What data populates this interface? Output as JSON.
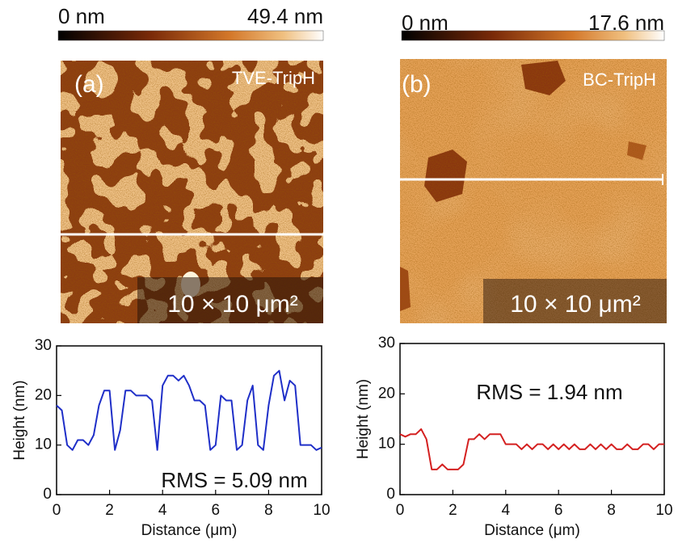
{
  "images": [
    {
      "label": "(a)",
      "sample": "TVE-TripH",
      "scale_min": "0 nm",
      "scale_max": "49.4 nm",
      "size": "10 × 10 μm²"
    },
    {
      "label": "(b)",
      "sample": "BC-TripH",
      "scale_min": "0 nm",
      "scale_max": "17.6 nm",
      "size": "10 × 10 μm²"
    }
  ],
  "chart_data": [
    {
      "type": "line",
      "xlabel": "Distance (μm)",
      "ylabel": "Height (nm)",
      "annotation": "RMS = 5.09 nm",
      "xlim": [
        0,
        10
      ],
      "xticks": [
        0,
        2,
        4,
        6,
        8,
        10
      ],
      "ylim": [
        0,
        30
      ],
      "yticks": [
        0,
        10,
        20,
        30
      ],
      "x": [
        0,
        0.2,
        0.4,
        0.6,
        0.8,
        1.0,
        1.2,
        1.4,
        1.6,
        1.8,
        2.0,
        2.2,
        2.4,
        2.6,
        2.8,
        3.0,
        3.2,
        3.4,
        3.6,
        3.8,
        4.0,
        4.2,
        4.4,
        4.6,
        4.8,
        5.0,
        5.2,
        5.4,
        5.6,
        5.8,
        6.0,
        6.2,
        6.4,
        6.6,
        6.8,
        7.0,
        7.2,
        7.4,
        7.6,
        7.8,
        8.0,
        8.2,
        8.4,
        8.6,
        8.8,
        9.0,
        9.2,
        9.4,
        9.6,
        9.8,
        10
      ],
      "series": [
        {
          "color": "#1f2fc8",
          "values": [
            18,
            17,
            10,
            9,
            11,
            11,
            10,
            12,
            18,
            21,
            21,
            9,
            13,
            21,
            21,
            20,
            20,
            20,
            19,
            9,
            22,
            24,
            24,
            23,
            24,
            22,
            19,
            19,
            18,
            9,
            10,
            20,
            19,
            19,
            9,
            10,
            19,
            22,
            10,
            9,
            18,
            24,
            25,
            19,
            23,
            22,
            10,
            10,
            10,
            9,
            9.5
          ]
        }
      ]
    },
    {
      "type": "line",
      "xlabel": "Distance (μm)",
      "ylabel": "Height (nm)",
      "annotation": "RMS = 1.94 nm",
      "xlim": [
        0,
        10
      ],
      "xticks": [
        0,
        2,
        4,
        6,
        8,
        10
      ],
      "ylim": [
        0,
        30
      ],
      "yticks": [
        0,
        10,
        20,
        30
      ],
      "x": [
        0,
        0.2,
        0.4,
        0.6,
        0.8,
        1.0,
        1.2,
        1.4,
        1.6,
        1.8,
        2.0,
        2.2,
        2.4,
        2.6,
        2.8,
        3.0,
        3.2,
        3.4,
        3.6,
        3.8,
        4.0,
        4.2,
        4.4,
        4.6,
        4.8,
        5.0,
        5.2,
        5.4,
        5.6,
        5.8,
        6.0,
        6.2,
        6.4,
        6.6,
        6.8,
        7.0,
        7.2,
        7.4,
        7.6,
        7.8,
        8.0,
        8.2,
        8.4,
        8.6,
        8.8,
        9.0,
        9.2,
        9.4,
        9.6,
        9.8,
        10
      ],
      "series": [
        {
          "color": "#d42020",
          "values": [
            12,
            11.5,
            12,
            12,
            13,
            11,
            5,
            5,
            6,
            5,
            5,
            5,
            6,
            11,
            11,
            12,
            11,
            12,
            12,
            12,
            10,
            10,
            10,
            9,
            10,
            9,
            10,
            10,
            9,
            10,
            9,
            10,
            9,
            10,
            9,
            9,
            10,
            9,
            10,
            9,
            10,
            9,
            9,
            10,
            9,
            9,
            10,
            10,
            9,
            10,
            10
          ]
        }
      ]
    }
  ]
}
